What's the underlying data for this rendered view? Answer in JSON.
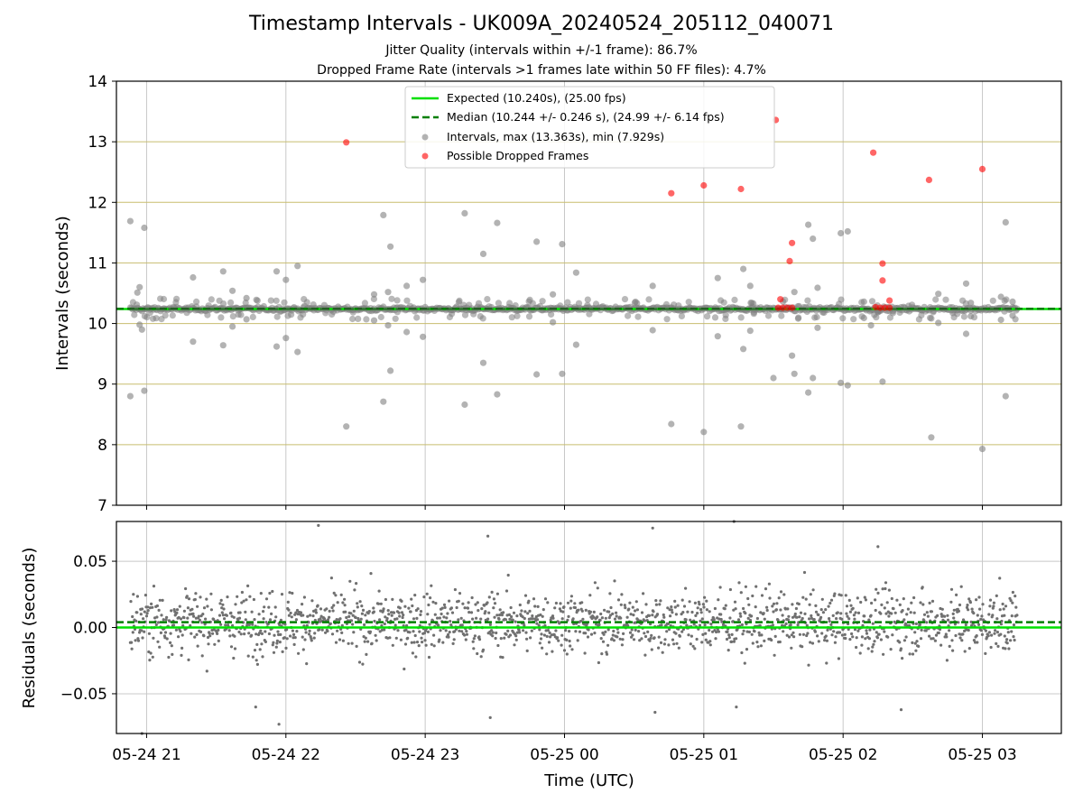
{
  "chart_data": [
    {
      "type": "scatter",
      "title": "Timestamp Intervals - UK009A_20240524_205112_040071",
      "subtitle_1": "Jitter Quality (intervals within +/-1 frame): 86.7%",
      "subtitle_2": "Dropped Frame Rate (intervals >1 frames late within 50 FF files): 4.7%",
      "xlabel": "",
      "ylabel": "Intervals (seconds)",
      "ylim": [
        7,
        14
      ],
      "yticks": [
        7,
        8,
        9,
        10,
        11,
        12,
        13,
        14
      ],
      "xlim": [
        "05-24 20:47",
        "05-25 03:34"
      ],
      "grid": true,
      "legend_position": "top-center",
      "expected_line": {
        "label": "Expected (10.240s), (25.00 fps)",
        "value": 10.24,
        "color": "#00e000"
      },
      "median_line": {
        "label": "Median (10.244 +/- 0.246 s), (24.99 +/- 6.14 fps)",
        "value": 10.244,
        "color": "#007f00"
      },
      "series": [
        {
          "name": "Intervals, max (13.363s), min (7.929s)",
          "color": "#808080",
          "points": [
            [
              "05-24 20:53",
              11.69
            ],
            [
              "05-24 20:59",
              11.58
            ],
            [
              "05-24 20:56",
              10.51
            ],
            [
              "05-24 20:57",
              10.6
            ],
            [
              "05-24 20:57",
              9.98
            ],
            [
              "05-24 20:58",
              9.9
            ],
            [
              "05-24 20:53",
              8.8
            ],
            [
              "05-24 20:59",
              8.89
            ],
            [
              "05-24 21:20",
              10.76
            ],
            [
              "05-24 21:20",
              9.7
            ],
            [
              "05-24 21:33",
              10.86
            ],
            [
              "05-24 21:33",
              9.64
            ],
            [
              "05-24 21:37",
              10.54
            ],
            [
              "05-24 21:37",
              9.95
            ],
            [
              "05-24 21:43",
              10.42
            ],
            [
              "05-24 21:43",
              10.07
            ],
            [
              "05-24 21:56",
              10.86
            ],
            [
              "05-24 21:56",
              9.62
            ],
            [
              "05-24 22:00",
              10.72
            ],
            [
              "05-24 22:00",
              9.76
            ],
            [
              "05-24 22:05",
              10.95
            ],
            [
              "05-24 22:05",
              9.53
            ],
            [
              "05-24 22:26",
              8.3
            ],
            [
              "05-24 22:38",
              10.48
            ],
            [
              "05-24 22:38",
              10.05
            ],
            [
              "05-24 22:42",
              11.79
            ],
            [
              "05-24 22:42",
              8.71
            ],
            [
              "05-24 22:44",
              10.52
            ],
            [
              "05-24 22:44",
              9.97
            ],
            [
              "05-24 22:45",
              11.27
            ],
            [
              "05-24 22:45",
              9.22
            ],
            [
              "05-24 22:52",
              10.62
            ],
            [
              "05-24 22:52",
              9.86
            ],
            [
              "05-24 22:59",
              10.72
            ],
            [
              "05-24 22:59",
              9.78
            ],
            [
              "05-24 23:17",
              11.82
            ],
            [
              "05-24 23:17",
              8.66
            ],
            [
              "05-24 23:25",
              11.15
            ],
            [
              "05-24 23:25",
              9.35
            ],
            [
              "05-24 23:31",
              11.66
            ],
            [
              "05-24 23:31",
              8.83
            ],
            [
              "05-24 23:48",
              11.35
            ],
            [
              "05-24 23:48",
              9.16
            ],
            [
              "05-24 23:59",
              11.31
            ],
            [
              "05-24 23:59",
              9.17
            ],
            [
              "05-24 23:55",
              10.48
            ],
            [
              "05-24 23:55",
              10.02
            ],
            [
              "05-25 00:05",
              10.84
            ],
            [
              "05-25 00:05",
              9.65
            ],
            [
              "05-25 00:38",
              10.62
            ],
            [
              "05-25 00:38",
              9.89
            ],
            [
              "05-25 00:46",
              8.34
            ],
            [
              "05-25 01:00",
              8.21
            ],
            [
              "05-25 01:06",
              10.75
            ],
            [
              "05-25 01:06",
              9.79
            ],
            [
              "05-25 01:17",
              10.9
            ],
            [
              "05-25 01:17",
              9.58
            ],
            [
              "05-25 01:16",
              8.3
            ],
            [
              "05-25 01:20",
              10.62
            ],
            [
              "05-25 01:20",
              9.88
            ],
            [
              "05-25 01:30",
              9.1
            ],
            [
              "05-25 01:38",
              9.47
            ],
            [
              "05-25 01:39",
              9.17
            ],
            [
              "05-25 01:39",
              10.52
            ],
            [
              "05-25 01:45",
              11.63
            ],
            [
              "05-25 01:45",
              8.86
            ],
            [
              "05-25 01:47",
              11.4
            ],
            [
              "05-25 01:47",
              9.1
            ],
            [
              "05-25 01:49",
              10.59
            ],
            [
              "05-25 01:49",
              9.93
            ],
            [
              "05-25 01:59",
              11.49
            ],
            [
              "05-25 01:59",
              9.02
            ],
            [
              "05-25 02:02",
              11.52
            ],
            [
              "05-25 02:02",
              8.98
            ],
            [
              "05-25 02:09",
              10.36
            ],
            [
              "05-25 02:09",
              10.09
            ],
            [
              "05-25 02:12",
              9.97
            ],
            [
              "05-25 02:17",
              9.04
            ],
            [
              "05-25 02:41",
              10.49
            ],
            [
              "05-25 02:41",
              10.01
            ],
            [
              "05-25 02:38",
              8.12
            ],
            [
              "05-25 02:53",
              10.66
            ],
            [
              "05-25 02:53",
              9.83
            ],
            [
              "05-25 02:55",
              10.34
            ],
            [
              "05-25 02:55",
              10.12
            ],
            [
              "05-25 03:00",
              7.93
            ],
            [
              "05-25 03:08",
              10.44
            ],
            [
              "05-25 03:08",
              10.06
            ],
            [
              "05-25 03:10",
              11.67
            ],
            [
              "05-25 03:10",
              8.8
            ],
            [
              "05-25 03:13",
              10.36
            ],
            [
              "05-25 03:13",
              10.13
            ]
          ]
        },
        {
          "name": "Possible Dropped Frames",
          "color": "#ff0000",
          "points": [
            [
              "05-24 22:26",
              12.99
            ],
            [
              "05-25 00:46",
              12.15
            ],
            [
              "05-25 01:00",
              12.28
            ],
            [
              "05-25 01:16",
              12.22
            ],
            [
              "05-25 01:31",
              13.36
            ],
            [
              "05-25 01:37",
              11.03
            ],
            [
              "05-25 01:38",
              11.33
            ],
            [
              "05-25 01:33",
              10.4
            ],
            [
              "05-25 01:32",
              10.26
            ],
            [
              "05-25 01:34",
              10.26
            ],
            [
              "05-25 01:36",
              10.26
            ],
            [
              "05-25 01:38",
              10.26
            ],
            [
              "05-25 02:13",
              12.82
            ],
            [
              "05-25 02:17",
              10.99
            ],
            [
              "05-25 02:17",
              10.71
            ],
            [
              "05-25 02:20",
              10.38
            ],
            [
              "05-25 02:14",
              10.27
            ],
            [
              "05-25 02:16",
              10.26
            ],
            [
              "05-25 02:18",
              10.26
            ],
            [
              "05-25 02:20",
              10.26
            ],
            [
              "05-25 02:37",
              12.37
            ],
            [
              "05-25 03:00",
              12.55
            ]
          ]
        }
      ]
    },
    {
      "type": "scatter",
      "xlabel": "Time (UTC)",
      "ylabel": "Residuals (seconds)",
      "ylim": [
        -0.08,
        0.08
      ],
      "yticks": [
        "−0.05",
        "0.00",
        "0.05"
      ],
      "xticks": [
        "05-24 21",
        "05-24 22",
        "05-24 23",
        "05-25 00",
        "05-25 01",
        "05-25 02",
        "05-25 03"
      ],
      "grid": true,
      "expected_line": {
        "value": 0.0,
        "color": "#00e000"
      },
      "median_line": {
        "value": 0.004,
        "color": "#007f00"
      },
      "series": [
        {
          "color": "#707070",
          "spread_std": 0.022,
          "time_range": [
            "05-24 20:53",
            "05-25 03:15"
          ],
          "outliers": [
            [
              "05-24 22:14",
              0.077
            ],
            [
              "05-24 21:57",
              -0.073
            ],
            [
              "05-24 21:47",
              -0.06
            ],
            [
              "05-24 20:58",
              -0.08
            ],
            [
              "05-24 23:28",
              -0.068
            ],
            [
              "05-24 23:27",
              0.069
            ],
            [
              "05-25 00:38",
              0.075
            ],
            [
              "05-25 00:39",
              -0.064
            ],
            [
              "05-25 01:13",
              0.08
            ],
            [
              "05-25 01:14",
              -0.06
            ],
            [
              "05-25 02:25",
              -0.062
            ],
            [
              "05-25 02:15",
              0.061
            ]
          ]
        }
      ]
    }
  ]
}
